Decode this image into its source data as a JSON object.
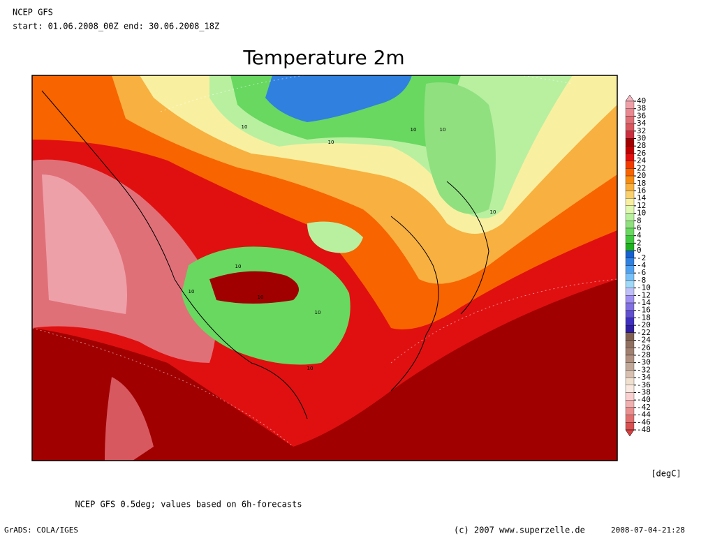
{
  "header": {
    "model": "NCEP GFS",
    "period": "start: 01.06.2008_00Z end: 30.06.2008_18Z"
  },
  "title": "Temperature 2m",
  "map": {
    "contour_labels": [
      "10",
      "10",
      "10",
      "10",
      "10",
      "10",
      "10",
      "10",
      "10",
      "10"
    ]
  },
  "colorbar": {
    "labels": [
      40,
      38,
      36,
      34,
      32,
      30,
      28,
      26,
      24,
      22,
      20,
      18,
      16,
      14,
      12,
      10,
      8,
      6,
      4,
      2,
      0,
      -2,
      -4,
      -6,
      -8,
      -10,
      -12,
      -14,
      -16,
      -18,
      -20,
      -22,
      -24,
      -26,
      -28,
      -30,
      -32,
      -34,
      -36,
      -38,
      -40,
      -42,
      -44,
      -46,
      -48
    ],
    "colors": [
      "#f4b8c0",
      "#eea0a8",
      "#e88890",
      "#e07078",
      "#d85860",
      "#c83040",
      "#a00000",
      "#c00000",
      "#e01010",
      "#f03c00",
      "#f86400",
      "#f88c10",
      "#f8b040",
      "#f8d070",
      "#f8f0a0",
      "#e0f8b0",
      "#b8f0a0",
      "#90e080",
      "#68d860",
      "#40c840",
      "#20b020",
      "#1860d0",
      "#3080e0",
      "#50a0f0",
      "#78c0f8",
      "#a0d8f8",
      "#c0c0f8",
      "#a090f0",
      "#8070e0",
      "#6050d0",
      "#4030c0",
      "#3020a0",
      "#806050",
      "#907060",
      "#a08070",
      "#b09080",
      "#c0a898",
      "#d8c0b0",
      "#f0e0d0",
      "#f8e8e0",
      "#f8d0d0",
      "#f0b0b0",
      "#e89090",
      "#e07070",
      "#d85050",
      "#d84040"
    ],
    "unit": "[degC]"
  },
  "footer": {
    "note": "NCEP GFS 0.5deg; values based on 6h-forecasts",
    "software": "GrADS: COLA/IGES",
    "copyright": "(c) 2007 www.superzelle.de",
    "timestamp": "2008-07-04-21:28"
  }
}
